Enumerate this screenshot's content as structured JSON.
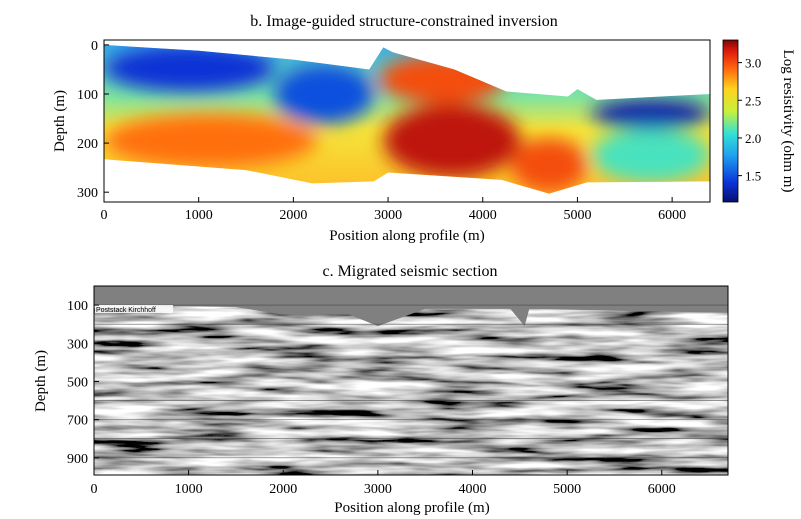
{
  "chart_data": [
    {
      "type": "heatmap",
      "title": "b. Image-guided structure-constrained inversion",
      "xlabel": "Position along profile (m)",
      "ylabel": "Depth (m)",
      "xlim": [
        0,
        6400
      ],
      "ylim": [
        320,
        -10
      ],
      "xticks": [
        "0",
        "1000",
        "2000",
        "3000",
        "4000",
        "5000",
        "6000"
      ],
      "yticks": [
        "0",
        "100",
        "200",
        "300"
      ],
      "colorbar": {
        "label": "Log resistivity (ohm m)",
        "range": [
          1.15,
          3.3
        ],
        "ticks": [
          "1.5",
          "2.0",
          "2.5",
          "3.0"
        ]
      },
      "top_boundary": [
        {
          "x": 0,
          "depth": 0
        },
        {
          "x": 1000,
          "depth": 12
        },
        {
          "x": 2000,
          "depth": 30
        },
        {
          "x": 2800,
          "depth": 50
        },
        {
          "x": 2950,
          "depth": 5
        },
        {
          "x": 3050,
          "depth": 15
        },
        {
          "x": 3700,
          "depth": 50
        },
        {
          "x": 4250,
          "depth": 95
        },
        {
          "x": 4900,
          "depth": 105
        },
        {
          "x": 5000,
          "depth": 90
        },
        {
          "x": 5200,
          "depth": 112
        },
        {
          "x": 6400,
          "depth": 100
        }
      ],
      "bottom_boundary": [
        {
          "x": 0,
          "depth": 233
        },
        {
          "x": 1500,
          "depth": 255
        },
        {
          "x": 2200,
          "depth": 282
        },
        {
          "x": 2850,
          "depth": 278
        },
        {
          "x": 3000,
          "depth": 260
        },
        {
          "x": 4200,
          "depth": 275
        },
        {
          "x": 4700,
          "depth": 303
        },
        {
          "x": 5100,
          "depth": 280
        },
        {
          "x": 6400,
          "depth": 278
        }
      ],
      "zones": [
        {
          "x": [
            0,
            1800
          ],
          "depth": [
            0,
            95
          ],
          "value": 1.4
        },
        {
          "x": [
            1800,
            2850
          ],
          "depth": [
            40,
            160
          ],
          "value": 1.5
        },
        {
          "x": [
            0,
            2250
          ],
          "depth": [
            140,
            250
          ],
          "value": 2.9
        },
        {
          "x": [
            2900,
            4250
          ],
          "depth": [
            20,
            120
          ],
          "value": 3.0
        },
        {
          "x": [
            2950,
            4400
          ],
          "depth": [
            120,
            270
          ],
          "value": 3.2
        },
        {
          "x": [
            4300,
            5100
          ],
          "depth": [
            190,
            300
          ],
          "value": 3.0
        },
        {
          "x": [
            5150,
            6400
          ],
          "depth": [
            110,
            170
          ],
          "value": 1.3
        },
        {
          "x": [
            5150,
            6400
          ],
          "depth": [
            170,
            280
          ],
          "value": 2.1
        }
      ]
    },
    {
      "type": "heatmap",
      "title": "c. Migrated seismic section",
      "xlabel": "Position along profile (m)",
      "ylabel": "Depth (m)",
      "xlim": [
        0,
        6700
      ],
      "ylim": [
        990,
        0
      ],
      "xticks": [
        "0",
        "1000",
        "2000",
        "3000",
        "4000",
        "5000",
        "6000"
      ],
      "yticks": [
        "100",
        "300",
        "500",
        "700",
        "900"
      ],
      "inset_label": "Poststack Kirchhoff",
      "top_boundary": [
        {
          "x": 0,
          "depth": 100
        },
        {
          "x": 1500,
          "depth": 110
        },
        {
          "x": 2000,
          "depth": 150
        },
        {
          "x": 2700,
          "depth": 150
        },
        {
          "x": 3000,
          "depth": 210
        },
        {
          "x": 3500,
          "depth": 120
        },
        {
          "x": 4400,
          "depth": 120
        },
        {
          "x": 4550,
          "depth": 210
        },
        {
          "x": 4600,
          "depth": 120
        },
        {
          "x": 6700,
          "depth": 140
        }
      ]
    }
  ]
}
